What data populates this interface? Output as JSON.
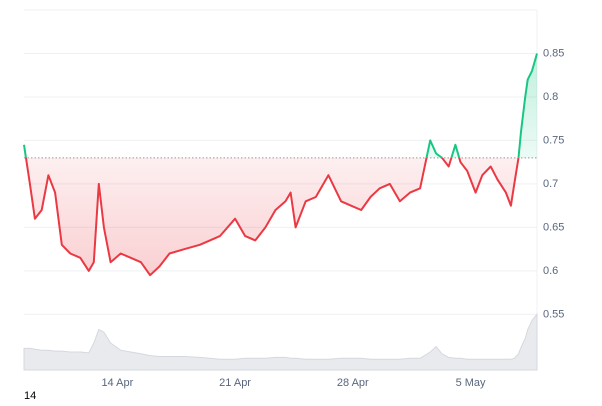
{
  "chart_data": {
    "type": "line",
    "baseline": 0.73,
    "colors": {
      "up": "#16c784",
      "down": "#ea3943",
      "volume": "#e8eaee"
    },
    "grid": true,
    "footer_label": "14",
    "x": [
      8.45,
      8.8,
      9.1,
      9.5,
      9.9,
      10.3,
      10.7,
      11.2,
      11.8,
      12.3,
      12.6,
      12.9,
      13.2,
      13.6,
      14.2,
      14.8,
      15.4,
      15.95,
      16.5,
      17.1,
      18.0,
      18.9,
      19.5,
      20.1,
      21.0,
      21.6,
      22.2,
      22.8,
      23.4,
      24.0,
      24.3,
      24.6,
      25.2,
      25.8,
      26.55,
      27.3,
      27.9,
      28.5,
      29.05,
      29.6,
      30.2,
      30.8,
      31.4,
      32.0,
      32.6,
      32.95,
      33.3,
      33.7,
      34.1,
      34.4,
      34.8,
      35.3,
      35.7,
      36.2,
      36.6,
      37.1,
      37.4,
      37.6,
      37.85,
      38.0,
      38.25,
      38.4,
      38.65,
      38.95
    ],
    "values": [
      0.745,
      0.7,
      0.66,
      0.67,
      0.71,
      0.69,
      0.63,
      0.62,
      0.615,
      0.6,
      0.61,
      0.7,
      0.65,
      0.61,
      0.62,
      0.615,
      0.61,
      0.595,
      0.605,
      0.62,
      0.625,
      0.63,
      0.635,
      0.64,
      0.66,
      0.64,
      0.635,
      0.65,
      0.67,
      0.68,
      0.69,
      0.65,
      0.68,
      0.685,
      0.71,
      0.68,
      0.675,
      0.67,
      0.685,
      0.695,
      0.7,
      0.68,
      0.69,
      0.695,
      0.75,
      0.735,
      0.73,
      0.72,
      0.745,
      0.725,
      0.715,
      0.69,
      0.71,
      0.72,
      0.705,
      0.69,
      0.675,
      0.7,
      0.73,
      0.76,
      0.8,
      0.82,
      0.83,
      0.85
    ],
    "volume": [
      24,
      24,
      23,
      22,
      22,
      21,
      21,
      20,
      20,
      19,
      30,
      45,
      42,
      30,
      22,
      20,
      18,
      16,
      15,
      15,
      15,
      14,
      13,
      12,
      12,
      13,
      13,
      13,
      14,
      14,
      13,
      13,
      12,
      12,
      12,
      13,
      13,
      13,
      12,
      12,
      12,
      12,
      13,
      13,
      20,
      26,
      18,
      14,
      13,
      13,
      12,
      12,
      12,
      12,
      12,
      12,
      12,
      13,
      18,
      25,
      35,
      45,
      55,
      62
    ],
    "xlim": [
      8.45,
      38.95
    ],
    "xticks": [
      {
        "value": 14,
        "label": "14 Apr"
      },
      {
        "value": 21,
        "label": "21 Apr"
      },
      {
        "value": 28,
        "label": "28 Apr"
      },
      {
        "value": 35,
        "label": "5 May"
      }
    ],
    "ylim": [
      0.486,
      0.9
    ],
    "yticks": [
      0.55,
      0.6,
      0.65,
      0.7,
      0.75,
      0.8,
      0.85
    ],
    "y2lim": [
      0,
      400
    ]
  }
}
